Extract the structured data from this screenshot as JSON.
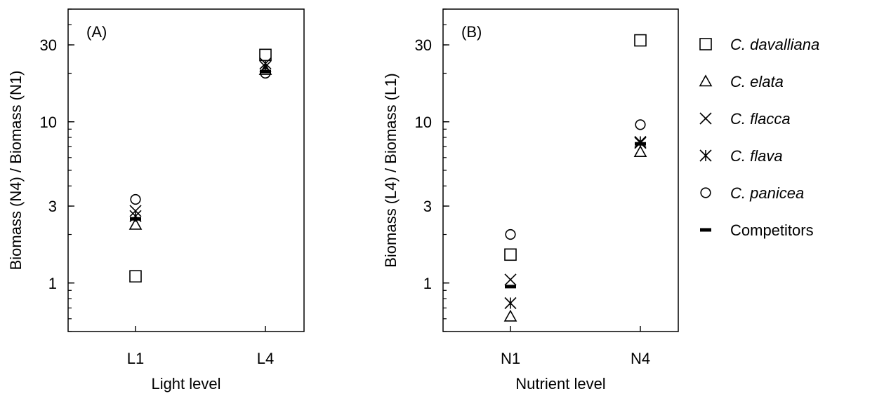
{
  "chart_data": [
    {
      "type": "scatter",
      "panel_label": "(A)",
      "categories": [
        "L1",
        "L4"
      ],
      "xlabel": "Light level",
      "ylabel": "Biomass (N4) / Biomass (N1)",
      "yscale": "log",
      "ylim": [
        0.5,
        50
      ],
      "yticks": [
        1,
        3,
        10,
        30
      ],
      "ytick_labels": [
        "1",
        "3",
        "10",
        "30"
      ],
      "series": [
        {
          "name": "C. davalliana",
          "marker": "square",
          "values": [
            1.1,
            26
          ]
        },
        {
          "name": "C. elata",
          "marker": "triangle",
          "values": [
            2.3,
            21
          ]
        },
        {
          "name": "C. flacca",
          "marker": "x",
          "values": [
            2.8,
            23
          ]
        },
        {
          "name": "C. flava",
          "marker": "asterisk",
          "values": [
            2.6,
            22
          ]
        },
        {
          "name": "C. panicea",
          "marker": "circle",
          "values": [
            3.3,
            20
          ]
        },
        {
          "name": "Competitors",
          "marker": "dash",
          "values": [
            2.5,
            20.5
          ]
        }
      ]
    },
    {
      "type": "scatter",
      "panel_label": "(B)",
      "categories": [
        "N1",
        "N4"
      ],
      "xlabel": "Nutrient level",
      "ylabel": "Biomass (L4) / Biomass (L1)",
      "yscale": "log",
      "ylim": [
        0.5,
        50
      ],
      "yticks": [
        1,
        3,
        10,
        30
      ],
      "ytick_labels": [
        "1",
        "3",
        "10",
        "30"
      ],
      "series": [
        {
          "name": "C. davalliana",
          "marker": "square",
          "values": [
            1.5,
            32
          ]
        },
        {
          "name": "C. elata",
          "marker": "triangle",
          "values": [
            0.62,
            6.5
          ]
        },
        {
          "name": "C. flacca",
          "marker": "x",
          "values": [
            1.05,
            7.4
          ]
        },
        {
          "name": "C. flava",
          "marker": "asterisk",
          "values": [
            0.75,
            7.5
          ]
        },
        {
          "name": "C. panicea",
          "marker": "circle",
          "values": [
            2.0,
            9.6
          ]
        },
        {
          "name": "Competitors",
          "marker": "dash",
          "values": [
            0.95,
            7.3
          ]
        }
      ]
    }
  ],
  "legend": {
    "placement": "right",
    "items": [
      {
        "label": "C. davalliana",
        "marker": "square",
        "italic": true
      },
      {
        "label": "C. elata",
        "marker": "triangle",
        "italic": true
      },
      {
        "label": "C. flacca",
        "marker": "x",
        "italic": true
      },
      {
        "label": "C. flava",
        "marker": "asterisk",
        "italic": true
      },
      {
        "label": "C. panicea",
        "marker": "circle",
        "italic": true
      },
      {
        "label": "Competitors",
        "marker": "dash",
        "italic": false
      }
    ]
  }
}
